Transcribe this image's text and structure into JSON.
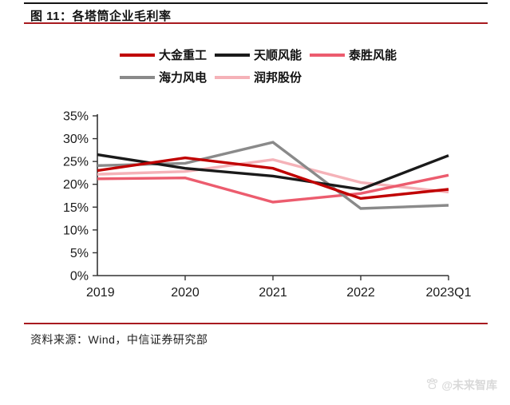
{
  "header": {
    "title": "图 11：各塔筒企业毛利率"
  },
  "chart_data": {
    "type": "line",
    "title": "各塔筒企业毛利率",
    "categories": [
      "2019",
      "2020",
      "2021",
      "2022",
      "2023Q1"
    ],
    "series": [
      {
        "name": "大金重工",
        "color": "#c00000",
        "values": [
          23.0,
          25.8,
          23.5,
          16.9,
          18.9
        ]
      },
      {
        "name": "天顺风能",
        "color": "#1a1a1a",
        "values": [
          26.5,
          23.5,
          21.8,
          18.9,
          26.3
        ]
      },
      {
        "name": "泰胜风能",
        "color": "#ec5c6e",
        "values": [
          21.2,
          21.4,
          16.1,
          18.0,
          22.0
        ]
      },
      {
        "name": "海力风电",
        "color": "#8a8a8a",
        "values": [
          24.1,
          24.6,
          29.2,
          14.7,
          15.4
        ]
      },
      {
        "name": "润邦股份",
        "color": "#f5b2b8",
        "values": [
          22.2,
          22.8,
          25.4,
          20.4,
          18.3
        ]
      }
    ],
    "ylim": [
      0,
      35
    ],
    "ytick_step": 5,
    "ytick_suffix": "%",
    "xlabel": "",
    "ylabel": "",
    "grid": false,
    "legend_position": "top",
    "draw_order": [
      4,
      2,
      3,
      1,
      0
    ]
  },
  "footer": {
    "source": "资料来源：Wind，中信证券研究部"
  },
  "watermark": {
    "text": "@未来智库"
  }
}
